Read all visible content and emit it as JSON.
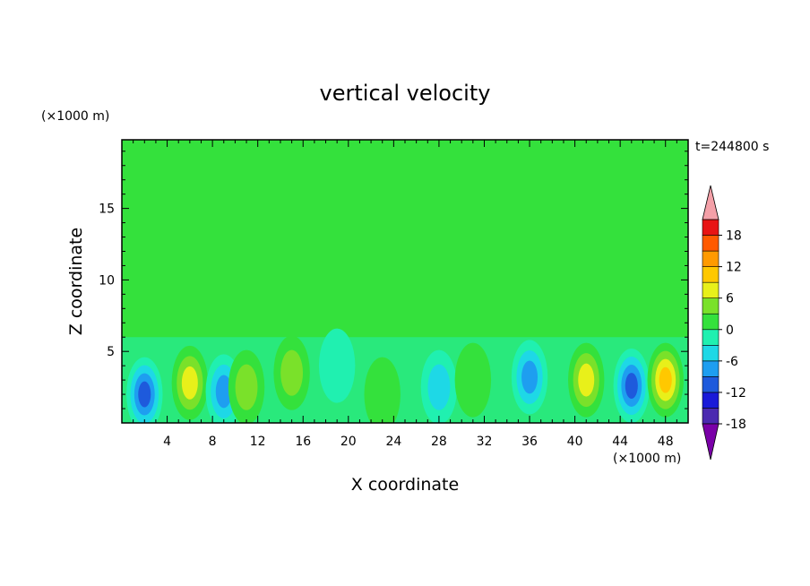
{
  "chart_data": {
    "type": "heatmap",
    "title": "vertical velocity",
    "xlabel": "X coordinate",
    "ylabel": "Z coordinate",
    "x_unit": "(×1000 m)",
    "y_unit": "(×1000 m)",
    "time_label": "t=244800 s",
    "xlim": [
      0,
      50
    ],
    "ylim": [
      0,
      19.8
    ],
    "x_ticks": [
      4,
      8,
      12,
      16,
      20,
      24,
      28,
      32,
      36,
      40,
      44,
      48
    ],
    "y_ticks": [
      5,
      10,
      15
    ],
    "colorbar": {
      "levels": [
        -21,
        -18,
        -15,
        -12,
        -9,
        -6,
        -3,
        0,
        3,
        6,
        9,
        12,
        15,
        18,
        21
      ],
      "tick_labels": [
        "18",
        "12",
        "6",
        "0",
        "-6",
        "-12",
        "-18"
      ],
      "tick_values": [
        18,
        12,
        6,
        0,
        -6,
        -12,
        -18
      ],
      "colors": [
        "#7a00a8",
        "#4b2ab0",
        "#1a1ad8",
        "#1e5adc",
        "#1e9ef0",
        "#1ed8e6",
        "#20f0b0",
        "#34e13c",
        "#7ae12a",
        "#e8f01a",
        "#ffc800",
        "#ff9a00",
        "#ff5a00",
        "#e81414",
        "#f4a0a8"
      ],
      "extend": "both"
    },
    "grid": false,
    "cells": [
      {
        "x": 2,
        "z": 2,
        "value": -12
      },
      {
        "x": 6,
        "z": 2.8,
        "value": 10
      },
      {
        "x": 9,
        "z": 2.2,
        "value": -10
      },
      {
        "x": 11,
        "z": 2.5,
        "value": 5
      },
      {
        "x": 15,
        "z": 3.5,
        "value": 6
      },
      {
        "x": 19,
        "z": 4,
        "value": -4
      },
      {
        "x": 23,
        "z": 2,
        "value": 2
      },
      {
        "x": 28,
        "z": 2.5,
        "value": -5
      },
      {
        "x": 31,
        "z": 3,
        "value": 4
      },
      {
        "x": 36,
        "z": 3.2,
        "value": -9
      },
      {
        "x": 41,
        "z": 3,
        "value": 10
      },
      {
        "x": 45,
        "z": 2.6,
        "value": -12
      },
      {
        "x": 48,
        "z": 3,
        "value": 11
      }
    ]
  }
}
